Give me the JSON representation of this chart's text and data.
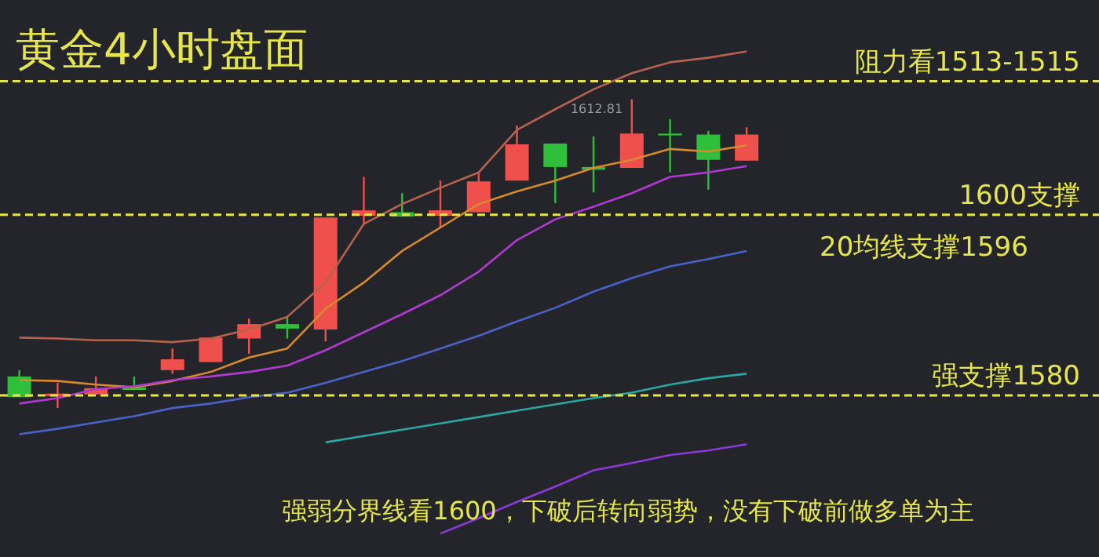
{
  "chart_data": {
    "type": "candlestick",
    "title": "黄金4小时盘面",
    "categories": [
      null,
      null,
      null,
      null,
      null,
      null,
      null,
      null,
      null,
      null,
      null,
      null,
      null,
      null,
      null,
      null,
      null,
      null,
      null,
      null
    ],
    "ohlc": [
      [
        1582.1,
        1582.8,
        1579.8,
        1579.8
      ],
      [
        1579.9,
        1581.4,
        1578.6,
        1580.2
      ],
      [
        1580.1,
        1582.1,
        1580.1,
        1580.8
      ],
      [
        1580.9,
        1582.1,
        1580.6,
        1580.6
      ],
      [
        1582.8,
        1585.2,
        1582.4,
        1584.0
      ],
      [
        1583.7,
        1586.4,
        1583.7,
        1586.4
      ],
      [
        1586.3,
        1588.5,
        1584.6,
        1587.9
      ],
      [
        1587.9,
        1588.7,
        1586.3,
        1587.4
      ],
      [
        1587.3,
        1599.7,
        1586.0,
        1599.7
      ],
      [
        1599.9,
        1604.2,
        1599.0,
        1600.5
      ],
      [
        1600.3,
        1602.4,
        1599.8,
        1599.8
      ],
      [
        1599.9,
        1603.8,
        1598.6,
        1600.5
      ],
      [
        1600.3,
        1604.7,
        1600.3,
        1603.7
      ],
      [
        1603.8,
        1609.9,
        1603.8,
        1607.8
      ],
      [
        1607.9,
        1607.9,
        1601.3,
        1605.3
      ],
      [
        1605.3,
        1608.7,
        1602.5,
        1605.0
      ],
      [
        1605.2,
        1612.81,
        1605.2,
        1609.0
      ],
      [
        1609.0,
        1610.6,
        1604.7,
        1608.8
      ],
      [
        1608.9,
        1609.3,
        1602.8,
        1606.1
      ],
      [
        1606.0,
        1609.7,
        1606.0,
        1608.9
      ]
    ],
    "colors": [
      "#2fbf3a",
      "#f0504c",
      "#f0504c",
      "#2fbf3a",
      "#f0504c",
      "#f0504c",
      "#f0504c",
      "#2fbf3a",
      "#f0504c",
      "#f0504c",
      "#2fbf3a",
      "#f0504c",
      "#f0504c",
      "#f0504c",
      "#2fbf3a",
      "#2fbf3a",
      "#f0504c",
      "#2fbf3a",
      "#2fbf3a",
      "#f0504c"
    ],
    "series": [
      {
        "type": "line",
        "color": "#b5624e",
        "values": [
          1586.4,
          1586.3,
          1586.1,
          1586.1,
          1585.9,
          1586.3,
          1587.3,
          1588.7,
          1592.5,
          1599.0,
          1601.2,
          1603.0,
          1604.7,
          1609.4,
          1611.7,
          1613.9,
          1615.7,
          1616.9,
          1617.4,
          1618.1
        ]
      },
      {
        "type": "line",
        "color": "#d88a2c",
        "values": [
          1581.7,
          1581.6,
          1581.2,
          1580.9,
          1581.6,
          1582.6,
          1584.2,
          1585.2,
          1589.6,
          1592.5,
          1596.0,
          1598.6,
          1601.2,
          1602.6,
          1603.8,
          1605.2,
          1606.1,
          1607.3,
          1607.0,
          1607.7
        ]
      },
      {
        "type": "line",
        "color": "#b03ad0",
        "values": [
          1579.1,
          1579.7,
          1580.7,
          1581.0,
          1581.7,
          1582.1,
          1582.6,
          1583.3,
          1585.0,
          1587.0,
          1589.0,
          1591.1,
          1593.7,
          1597.2,
          1599.5,
          1600.9,
          1602.4,
          1604.2,
          1604.7,
          1605.4
        ]
      },
      {
        "type": "line",
        "color": "#4a62c8",
        "values": [
          1575.7,
          1576.3,
          1577.0,
          1577.7,
          1578.6,
          1579.1,
          1579.8,
          1580.3,
          1581.4,
          1582.6,
          1583.8,
          1585.2,
          1586.6,
          1588.2,
          1589.7,
          1591.5,
          1593.0,
          1594.3,
          1595.1,
          1596.0
        ]
      },
      {
        "type": "line",
        "color": "#2aa7a0",
        "values": [
          null,
          null,
          null,
          null,
          null,
          null,
          null,
          null,
          1574.8,
          1575.5,
          1576.2,
          1576.9,
          1577.6,
          1578.3,
          1579.0,
          1579.7,
          1580.3,
          1581.2,
          1581.9,
          1582.4
        ]
      },
      {
        "type": "line",
        "color": "#8a3ad8",
        "values": [
          null,
          null,
          null,
          null,
          null,
          null,
          null,
          null,
          null,
          null,
          null,
          1564.7,
          1566.4,
          1568.2,
          1569.9,
          1571.7,
          1572.5,
          1573.4,
          1573.9,
          1574.6
        ]
      }
    ],
    "ylim": [
      1562.1,
      1623.8
    ],
    "tick_labels": false,
    "ref_lines": [
      {
        "axis": "y",
        "value": 1614.8,
        "label": "阻力看1513-1515",
        "color": "#e6e64a",
        "line_style": "dashed"
      },
      {
        "axis": "y",
        "value": 1600,
        "label": "1600支撑",
        "color": "#e6e64a",
        "line_style": "dashed"
      },
      {
        "axis": "y",
        "value": 1580,
        "label": "强支撑1580",
        "color": "#e6e64a",
        "line_style": "dashed"
      }
    ],
    "annotations": [
      "1612.81",
      "20均线支撑1596",
      "强弱分界线看1600，下破后转向弱势，没有下破前做多单为主"
    ]
  }
}
